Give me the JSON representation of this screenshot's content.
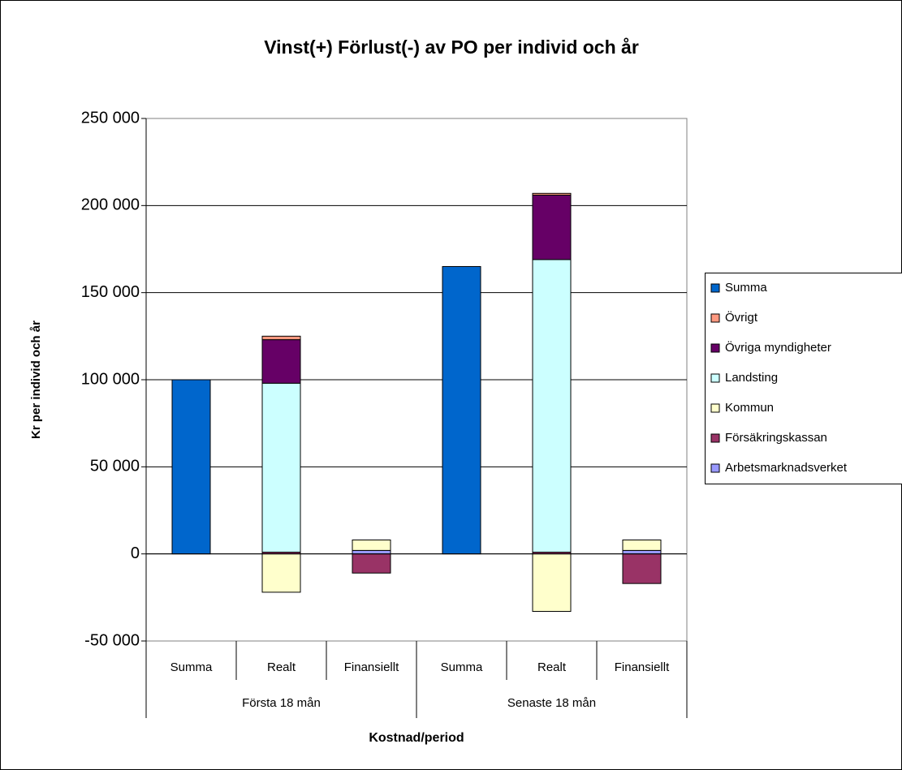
{
  "chart_data": {
    "type": "stacked-bar",
    "title": "Vinst(+) Förlust(-) av PO per individ och år",
    "y_label": "Kr per individ och år",
    "x_label": "Kostnad/period",
    "groups": [
      {
        "name": "Första 18 mån",
        "categories": [
          "Summa",
          "Realt",
          "Finansiellt"
        ]
      },
      {
        "name": "Senaste 18 mån",
        "categories": [
          "Summa",
          "Realt",
          "Finansiellt"
        ]
      }
    ],
    "series": [
      {
        "name": "Arbetsmarknadsverket",
        "color": "#9999ff",
        "values": [
          null,
          null,
          2000,
          null,
          null,
          2000
        ]
      },
      {
        "name": "Försäkringskassan",
        "color": "#993366",
        "values": [
          null,
          1000,
          -11000,
          null,
          1000,
          -17000
        ]
      },
      {
        "name": "Kommun",
        "color": "#ffffcc",
        "values": [
          null,
          -22000,
          6000,
          null,
          -33000,
          6000
        ]
      },
      {
        "name": "Landsting",
        "color": "#ccffff",
        "values": [
          null,
          97000,
          null,
          null,
          168000,
          null
        ]
      },
      {
        "name": "Övriga myndigheter",
        "color": "#660066",
        "values": [
          null,
          25000,
          null,
          null,
          37000,
          null
        ]
      },
      {
        "name": "Övrigt",
        "color": "#ff9980",
        "values": [
          null,
          2000,
          null,
          null,
          1000,
          null
        ]
      },
      {
        "name": "Summa",
        "color": "#0066cc",
        "values": [
          100000,
          null,
          null,
          165000,
          null,
          null
        ]
      }
    ],
    "ylim": [
      -50000,
      250000
    ],
    "yticks": [
      {
        "value": -50000,
        "label": "-50 000"
      },
      0,
      {
        "value": 50000,
        "label": "50 000"
      },
      {
        "value": 100000,
        "label": "100 000"
      },
      {
        "value": 150000,
        "label": "150 000"
      },
      {
        "value": 200000,
        "label": "200 000"
      },
      {
        "value": 250000,
        "label": "250 000"
      }
    ],
    "grid": true,
    "legend": "right"
  }
}
